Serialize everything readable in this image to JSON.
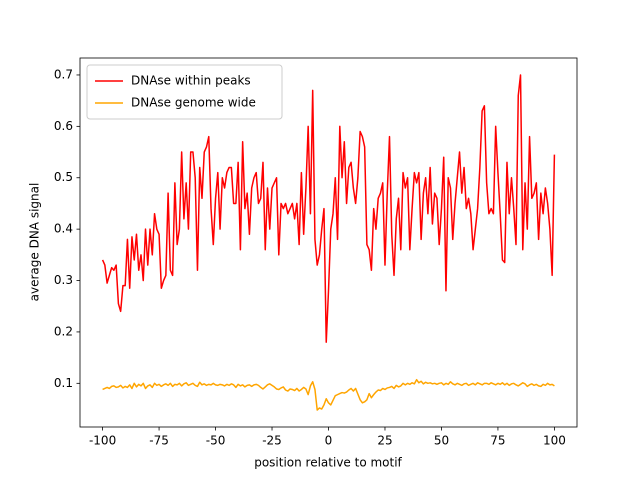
{
  "chart_data": {
    "type": "line",
    "xlabel": "position relative to motif",
    "ylabel": "average DNA signal",
    "x": [
      -100,
      -99,
      -98,
      -97,
      -96,
      -95,
      -94,
      -93,
      -92,
      -91,
      -90,
      -89,
      -88,
      -87,
      -86,
      -85,
      -84,
      -83,
      -82,
      -81,
      -80,
      -79,
      -78,
      -77,
      -76,
      -75,
      -74,
      -73,
      -72,
      -71,
      -70,
      -69,
      -68,
      -67,
      -66,
      -65,
      -64,
      -63,
      -62,
      -61,
      -60,
      -59,
      -58,
      -57,
      -56,
      -55,
      -54,
      -53,
      -52,
      -51,
      -50,
      -49,
      -48,
      -47,
      -46,
      -45,
      -44,
      -43,
      -42,
      -41,
      -40,
      -39,
      -38,
      -37,
      -36,
      -35,
      -34,
      -33,
      -32,
      -31,
      -30,
      -29,
      -28,
      -27,
      -26,
      -25,
      -24,
      -23,
      -22,
      -21,
      -20,
      -19,
      -18,
      -17,
      -16,
      -15,
      -14,
      -13,
      -12,
      -11,
      -10,
      -9,
      -8,
      -7,
      -6,
      -5,
      -4,
      -3,
      -2,
      -1,
      0,
      1,
      2,
      3,
      4,
      5,
      6,
      7,
      8,
      9,
      10,
      11,
      12,
      13,
      14,
      15,
      16,
      17,
      18,
      19,
      20,
      21,
      22,
      23,
      24,
      25,
      26,
      27,
      28,
      29,
      30,
      31,
      32,
      33,
      34,
      35,
      36,
      37,
      38,
      39,
      40,
      41,
      42,
      43,
      44,
      45,
      46,
      47,
      48,
      49,
      50,
      51,
      52,
      53,
      54,
      55,
      56,
      57,
      58,
      59,
      60,
      61,
      62,
      63,
      64,
      65,
      66,
      67,
      68,
      69,
      70,
      71,
      72,
      73,
      74,
      75,
      76,
      77,
      78,
      79,
      80,
      81,
      82,
      83,
      84,
      85,
      86,
      87,
      88,
      89,
      90,
      91,
      92,
      93,
      94,
      95,
      96,
      97,
      98,
      99,
      100
    ],
    "series": [
      {
        "name": "DNAse within peaks",
        "color": "#ff0000",
        "values": [
          0.34,
          0.33,
          0.295,
          0.31,
          0.325,
          0.32,
          0.33,
          0.255,
          0.24,
          0.29,
          0.29,
          0.38,
          0.285,
          0.385,
          0.34,
          0.39,
          0.32,
          0.35,
          0.3,
          0.4,
          0.33,
          0.4,
          0.35,
          0.43,
          0.4,
          0.39,
          0.285,
          0.3,
          0.31,
          0.47,
          0.32,
          0.31,
          0.49,
          0.37,
          0.4,
          0.55,
          0.42,
          0.49,
          0.4,
          0.55,
          0.55,
          0.5,
          0.32,
          0.52,
          0.46,
          0.55,
          0.56,
          0.58,
          0.44,
          0.37,
          0.46,
          0.51,
          0.4,
          0.5,
          0.48,
          0.51,
          0.52,
          0.52,
          0.45,
          0.45,
          0.53,
          0.36,
          0.57,
          0.44,
          0.47,
          0.39,
          0.48,
          0.5,
          0.51,
          0.45,
          0.46,
          0.53,
          0.36,
          0.48,
          0.4,
          0.48,
          0.49,
          0.5,
          0.35,
          0.45,
          0.44,
          0.45,
          0.43,
          0.44,
          0.45,
          0.42,
          0.45,
          0.37,
          0.51,
          0.39,
          0.48,
          0.6,
          0.43,
          0.67,
          0.38,
          0.33,
          0.35,
          0.4,
          0.44,
          0.18,
          0.28,
          0.4,
          0.43,
          0.5,
          0.38,
          0.6,
          0.5,
          0.57,
          0.45,
          0.52,
          0.53,
          0.48,
          0.45,
          0.5,
          0.59,
          0.58,
          0.56,
          0.37,
          0.36,
          0.32,
          0.44,
          0.4,
          0.46,
          0.47,
          0.49,
          0.33,
          0.47,
          0.58,
          0.39,
          0.31,
          0.42,
          0.46,
          0.36,
          0.51,
          0.48,
          0.5,
          0.36,
          0.44,
          0.51,
          0.49,
          0.51,
          0.38,
          0.47,
          0.5,
          0.43,
          0.52,
          0.41,
          0.47,
          0.46,
          0.37,
          0.44,
          0.54,
          0.28,
          0.5,
          0.48,
          0.38,
          0.45,
          0.5,
          0.55,
          0.47,
          0.52,
          0.44,
          0.46,
          0.43,
          0.36,
          0.4,
          0.44,
          0.52,
          0.63,
          0.64,
          0.49,
          0.43,
          0.44,
          0.43,
          0.6,
          0.51,
          0.43,
          0.34,
          0.335,
          0.53,
          0.43,
          0.5,
          0.44,
          0.37,
          0.66,
          0.7,
          0.36,
          0.49,
          0.4,
          0.58,
          0.46,
          0.47,
          0.49,
          0.38,
          0.47,
          0.43,
          0.48,
          0.45,
          0.4,
          0.31,
          0.545
        ]
      },
      {
        "name": "DNAse genome wide",
        "color": "#ffa500",
        "values": [
          0.088,
          0.09,
          0.092,
          0.09,
          0.094,
          0.095,
          0.092,
          0.093,
          0.096,
          0.091,
          0.094,
          0.092,
          0.097,
          0.09,
          0.1,
          0.093,
          0.098,
          0.095,
          0.1,
          0.09,
          0.095,
          0.097,
          0.092,
          0.1,
          0.096,
          0.098,
          0.094,
          0.097,
          0.099,
          0.096,
          0.1,
          0.094,
          0.098,
          0.097,
          0.1,
          0.095,
          0.099,
          0.101,
          0.096,
          0.098,
          0.1,
          0.096,
          0.094,
          0.102,
          0.097,
          0.099,
          0.096,
          0.098,
          0.097,
          0.1,
          0.097,
          0.096,
          0.098,
          0.097,
          0.095,
          0.098,
          0.096,
          0.099,
          0.097,
          0.092,
          0.098,
          0.095,
          0.097,
          0.093,
          0.096,
          0.097,
          0.094,
          0.097,
          0.098,
          0.096,
          0.092,
          0.089,
          0.093,
          0.097,
          0.099,
          0.096,
          0.093,
          0.089,
          0.088,
          0.091,
          0.093,
          0.087,
          0.085,
          0.089,
          0.088,
          0.086,
          0.09,
          0.085,
          0.088,
          0.092,
          0.089,
          0.078,
          0.095,
          0.103,
          0.088,
          0.048,
          0.052,
          0.05,
          0.058,
          0.07,
          0.062,
          0.058,
          0.067,
          0.076,
          0.078,
          0.08,
          0.082,
          0.081,
          0.083,
          0.087,
          0.09,
          0.085,
          0.09,
          0.079,
          0.068,
          0.062,
          0.064,
          0.068,
          0.08,
          0.072,
          0.078,
          0.083,
          0.087,
          0.086,
          0.09,
          0.088,
          0.091,
          0.092,
          0.094,
          0.09,
          0.096,
          0.093,
          0.095,
          0.1,
          0.097,
          0.1,
          0.098,
          0.101,
          0.099,
          0.107,
          0.101,
          0.104,
          0.099,
          0.102,
          0.1,
          0.101,
          0.099,
          0.1,
          0.098,
          0.1,
          0.101,
          0.097,
          0.1,
          0.098,
          0.103,
          0.099,
          0.097,
          0.1,
          0.098,
          0.096,
          0.099,
          0.1,
          0.096,
          0.098,
          0.1,
          0.097,
          0.101,
          0.099,
          0.097,
          0.1,
          0.1,
          0.098,
          0.101,
          0.099,
          0.097,
          0.1,
          0.098,
          0.101,
          0.097,
          0.1,
          0.096,
          0.099,
          0.1,
          0.097,
          0.095,
          0.098,
          0.101,
          0.099,
          0.094,
          0.097,
          0.099,
          0.096,
          0.098,
          0.095,
          0.094,
          0.098,
          0.096,
          0.1,
          0.097,
          0.098,
          0.095
        ]
      }
    ],
    "xlim": [
      -110,
      110
    ],
    "xticks": [
      -100,
      -75,
      -50,
      -25,
      0,
      25,
      50,
      75,
      100
    ],
    "ylim": [
      0.015,
      0.733
    ],
    "yticks": [
      0.1,
      0.2,
      0.3,
      0.4,
      0.5,
      0.6,
      0.7
    ],
    "grid": false,
    "legend": "upper left"
  }
}
